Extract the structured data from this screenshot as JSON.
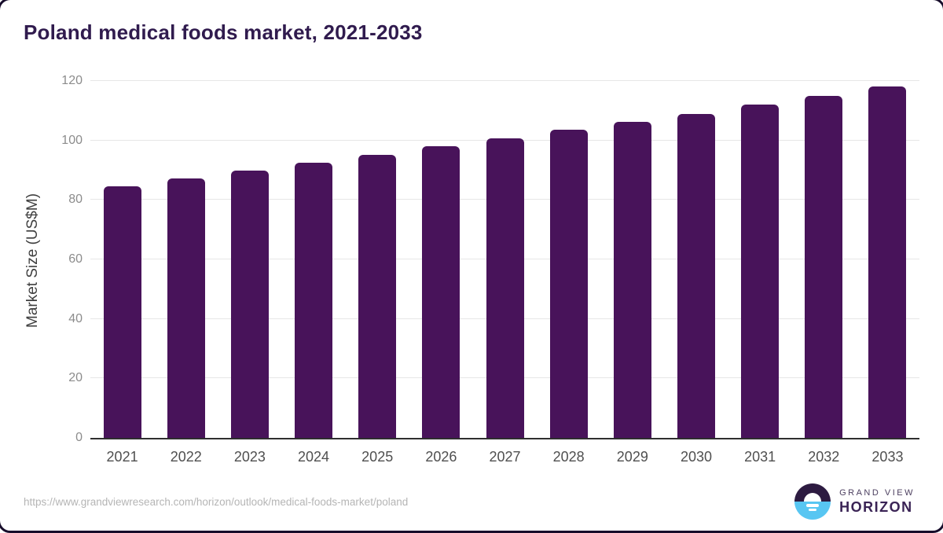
{
  "title": "Poland medical foods market, 2021-2033",
  "chart_data": {
    "type": "bar",
    "title": "Poland medical foods market, 2021-2033",
    "categories": [
      "2021",
      "2022",
      "2023",
      "2024",
      "2025",
      "2026",
      "2027",
      "2028",
      "2029",
      "2030",
      "2031",
      "2032",
      "2033"
    ],
    "values": [
      84.5,
      87.2,
      90.0,
      92.6,
      95.2,
      98.1,
      100.7,
      103.5,
      106.2,
      109.0,
      112.0,
      114.9,
      118.2
    ],
    "xlabel": "",
    "ylabel": "Market Size (US$M)",
    "ylim": [
      0,
      120
    ],
    "yticks": [
      0,
      20,
      40,
      60,
      80,
      100,
      120
    ],
    "grid": true,
    "legend": false,
    "bar_color": "#48135a"
  },
  "colors": {
    "bar": "#48135a",
    "title_text": "#301b4e",
    "gridline": "#e7e7e7",
    "axis_line": "#2f2f2f",
    "y_tick_label": "#8c8c8c",
    "x_tick_label": "#4f4f4f",
    "axis_title": "#3f3f3f",
    "source_url": "#b5b5b5",
    "logo_dark": "#2d1b41",
    "logo_blue": "#58c6f2"
  },
  "footer": {
    "source_url": "https://www.grandviewresearch.com/horizon/outlook/medical-foods-market/poland",
    "logo": {
      "top_text": "GRAND VIEW",
      "bottom_text": "HORIZON"
    }
  }
}
